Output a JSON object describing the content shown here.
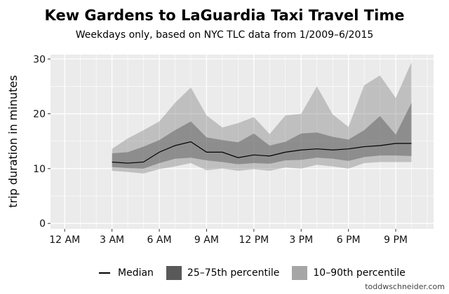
{
  "chart_data": {
    "type": "area",
    "title": "Kew Gardens to LaGuardia Taxi Travel Time",
    "subtitle": "Weekdays only, based on NYC TLC data from 1/2009–6/2015",
    "xlabel": "",
    "ylabel": "trip duration in minutes",
    "xlim": [
      0,
      24
    ],
    "ylim": [
      0,
      30
    ],
    "x_ticks": [
      0,
      3,
      6,
      9,
      12,
      15,
      18,
      21
    ],
    "x_tick_labels": [
      "12 AM",
      "3 AM",
      "6 AM",
      "9 AM",
      "12 PM",
      "3 PM",
      "6 PM",
      "9 PM"
    ],
    "y_ticks": [
      0,
      10,
      20,
      30
    ],
    "y_tick_labels": [
      "0",
      "10",
      "20",
      "30"
    ],
    "grid": true,
    "legend_position": "bottom",
    "x": [
      3,
      4,
      5,
      6,
      7,
      8,
      9,
      10,
      11,
      12,
      13,
      14,
      15,
      16,
      17,
      18,
      19,
      20,
      21,
      22
    ],
    "series": [
      {
        "name": "Median",
        "kind": "line",
        "color": "#000000",
        "values": [
          11.2,
          11.0,
          11.2,
          13.0,
          14.2,
          14.9,
          13.0,
          13.0,
          12.0,
          12.5,
          12.3,
          13.0,
          13.4,
          13.6,
          13.4,
          13.6,
          14.0,
          14.2,
          14.6,
          14.6
        ]
      },
      {
        "name": "25–75th percentile",
        "kind": "band",
        "color": "#8c8c8c",
        "lower": [
          10.3,
          10.1,
          10.0,
          11.0,
          11.8,
          12.0,
          11.5,
          11.2,
          10.8,
          11.0,
          10.9,
          11.5,
          11.6,
          12.0,
          11.8,
          11.4,
          12.1,
          12.4,
          12.4,
          12.3
        ],
        "upper": [
          12.8,
          13.0,
          14.0,
          15.2,
          17.0,
          18.6,
          15.7,
          15.2,
          14.8,
          16.4,
          14.2,
          14.9,
          16.4,
          16.6,
          15.8,
          15.3,
          17.0,
          19.6,
          16.2,
          22.0
        ]
      },
      {
        "name": "10–90th percentile",
        "kind": "band",
        "color": "#c4c4c4",
        "lower": [
          9.6,
          9.4,
          9.1,
          9.9,
          10.4,
          11.0,
          9.7,
          10.0,
          9.6,
          9.9,
          9.6,
          10.2,
          10.0,
          10.7,
          10.4,
          10.0,
          11.0,
          11.2,
          11.2,
          11.2
        ],
        "upper": [
          13.6,
          15.5,
          17.0,
          18.6,
          22.0,
          24.8,
          19.7,
          17.5,
          18.3,
          19.4,
          16.3,
          19.7,
          20.0,
          25.0,
          19.9,
          17.6,
          25.2,
          27.0,
          22.9,
          29.4
        ]
      }
    ]
  },
  "legend": {
    "median_label": "Median",
    "iqr_label": "25–75th percentile",
    "outer_label": "10–90th percentile",
    "median_color": "#000000",
    "iqr_color": "#595959",
    "outer_color": "#a6a6a6"
  },
  "credit": "toddwschneider.com"
}
